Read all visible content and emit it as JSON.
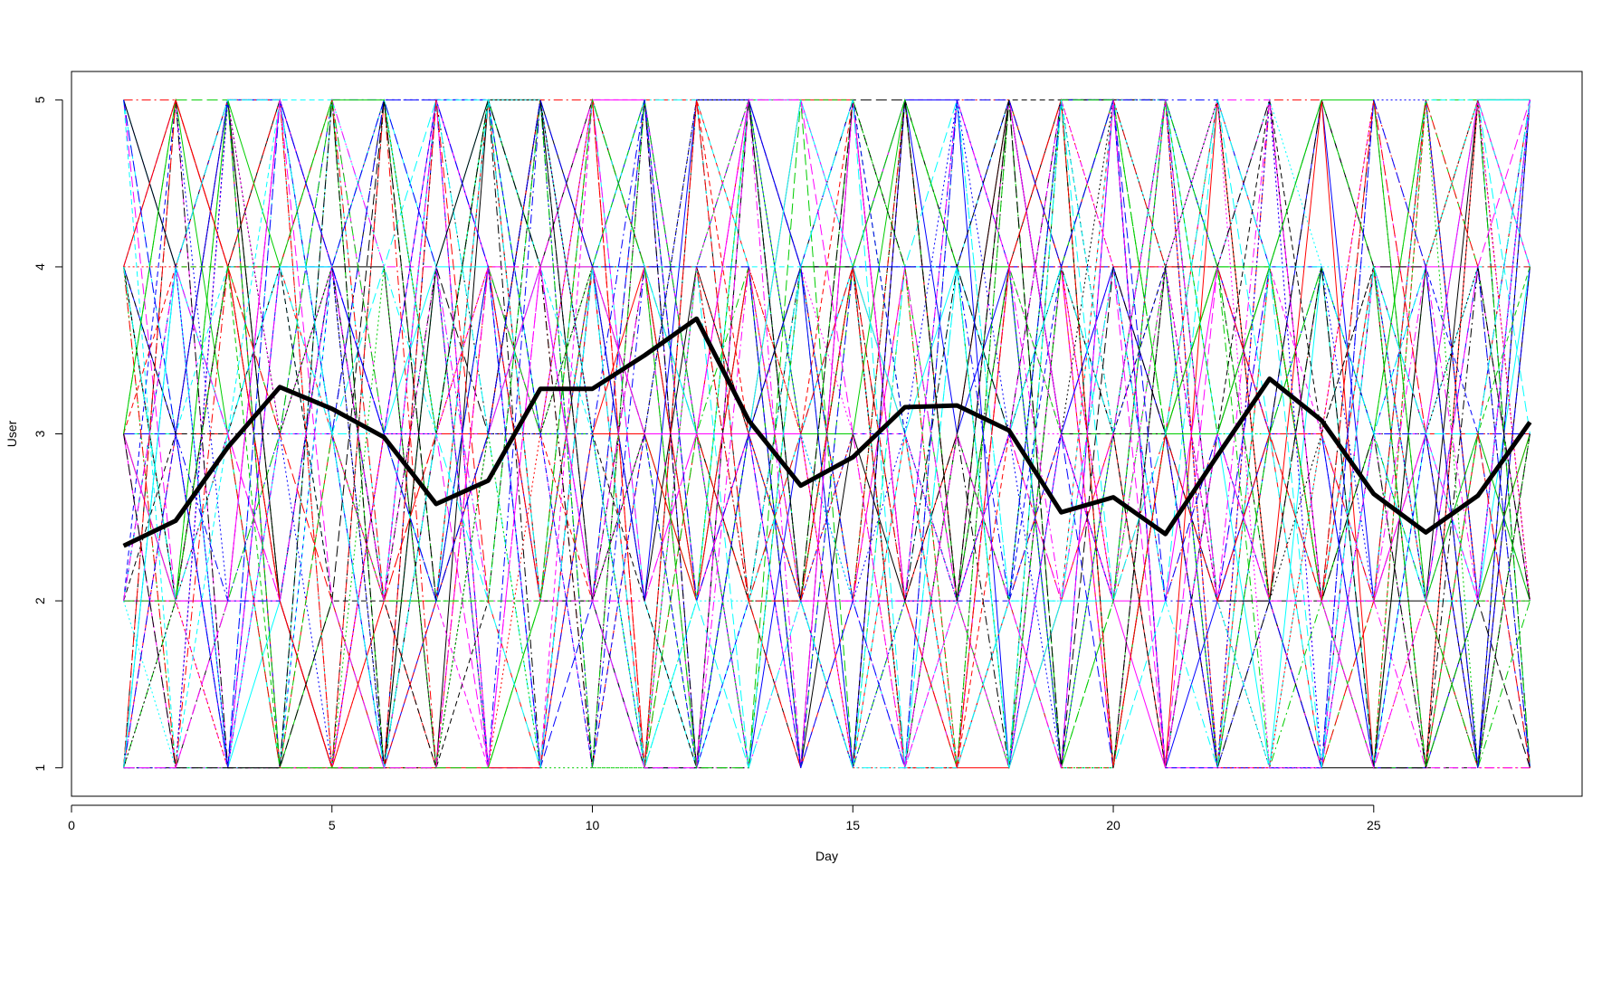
{
  "chart_data": {
    "type": "line",
    "title": "",
    "xlabel": "Day",
    "ylabel": "User",
    "xlim": [
      0,
      29
    ],
    "ylim": [
      0.83,
      5.17
    ],
    "xticks": [
      0,
      5,
      10,
      15,
      20,
      25
    ],
    "yticks": [
      1,
      2,
      3,
      4,
      5
    ],
    "grid": false,
    "legend": "none",
    "palette": [
      "#000000",
      "#ff0000",
      "#00cd00",
      "#0000ff",
      "#00ffff",
      "#ff00ff"
    ],
    "individual_series_count": 60,
    "individual_series_style": "thin, cycling colors and dash patterns; integer values 1-5 per day",
    "mean_series": {
      "color": "#000000",
      "x": [
        1,
        2,
        3,
        4,
        5,
        6,
        7,
        8,
        9,
        10,
        11,
        12,
        13,
        14,
        15,
        16,
        17,
        18,
        19,
        20,
        21,
        22,
        23,
        24,
        25,
        26,
        27,
        28
      ],
      "values": [
        2.33,
        2.48,
        2.92,
        3.28,
        3.15,
        2.98,
        2.58,
        2.72,
        3.27,
        3.27,
        3.47,
        3.69,
        3.08,
        2.69,
        2.86,
        3.16,
        3.17,
        3.02,
        2.53,
        2.62,
        2.4,
        2.87,
        3.33,
        3.08,
        2.64,
        2.41,
        2.63,
        3.07
      ]
    }
  }
}
